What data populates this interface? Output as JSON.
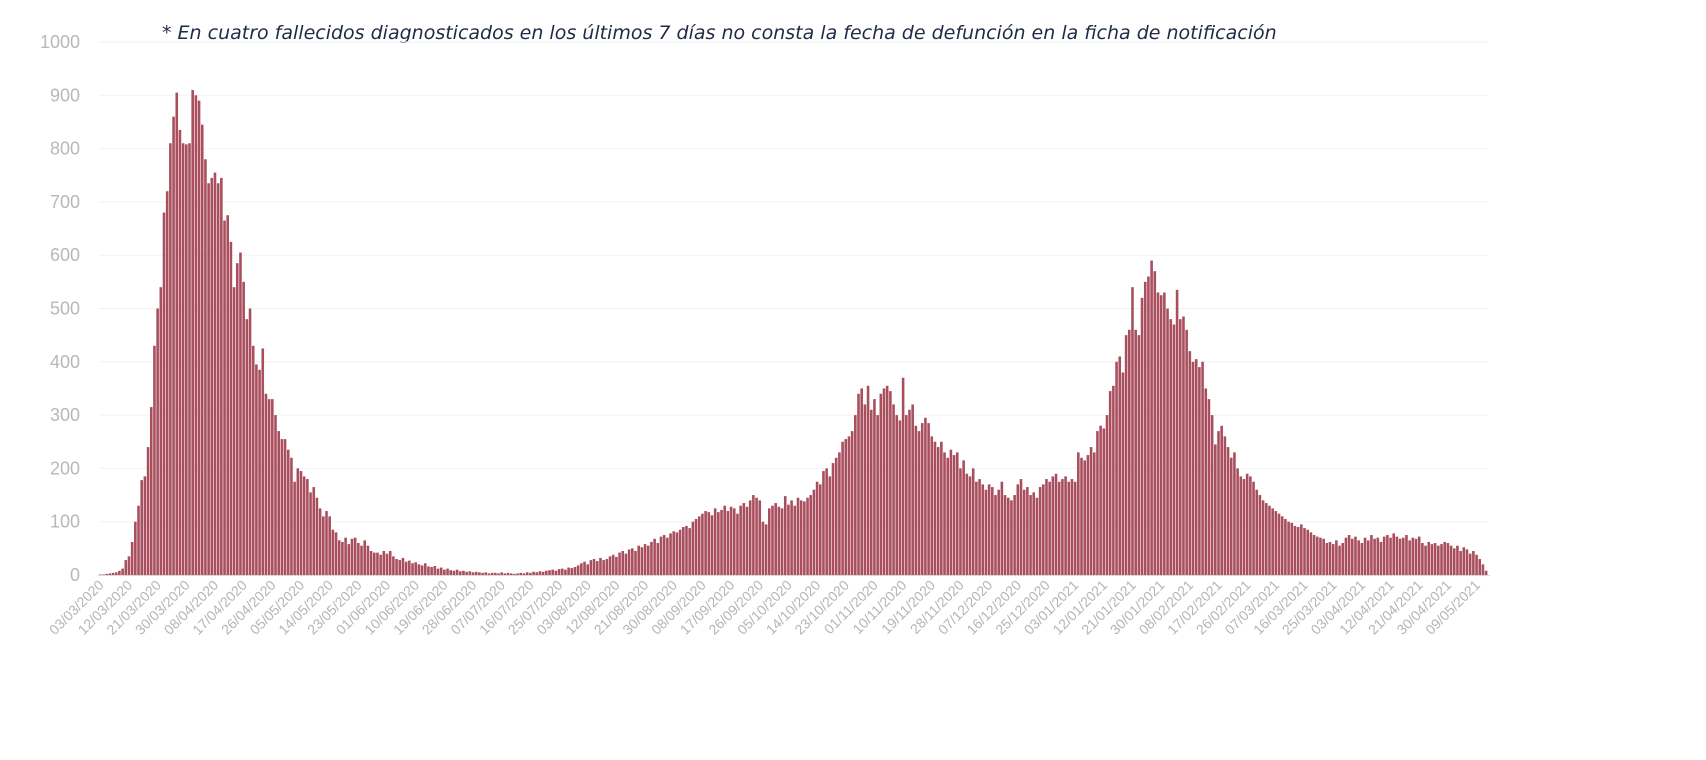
{
  "chart_data": {
    "type": "bar",
    "title": "",
    "annotation": "* En cuatro  fallecidos diagnosticados en los últimos 7 días no consta la fecha de defunción en la ficha de notificación",
    "xlabel": "",
    "ylabel": "",
    "ylim": [
      0,
      1000
    ],
    "yticks": [
      0,
      100,
      200,
      300,
      400,
      500,
      600,
      700,
      800,
      900,
      1000
    ],
    "grid": true,
    "bar_color": "#a94e5d",
    "x_start": "03/03/2020",
    "x_end": "13/05/2021",
    "x_tick_labels": [
      "03/03/2020",
      "12/03/2020",
      "21/03/2020",
      "30/03/2020",
      "08/04/2020",
      "17/04/2020",
      "26/04/2020",
      "05/05/2020",
      "14/05/2020",
      "23/05/2020",
      "01/06/2020",
      "10/06/2020",
      "19/06/2020",
      "28/06/2020",
      "07/07/2020",
      "16/07/2020",
      "25/07/2020",
      "03/08/2020",
      "12/08/2020",
      "21/08/2020",
      "30/08/2020",
      "08/09/2020",
      "17/09/2020",
      "26/09/2020",
      "05/10/2020",
      "14/10/2020",
      "23/10/2020",
      "01/11/2020",
      "10/11/2020",
      "19/11/2020",
      "28/11/2020",
      "07/12/2020",
      "16/12/2020",
      "25/12/2020",
      "03/01/2021",
      "12/01/2021",
      "21/01/2021",
      "30/01/2021",
      "08/02/2021",
      "17/02/2021",
      "26/02/2021",
      "07/03/2021",
      "16/03/2021",
      "25/03/2021",
      "03/04/2021",
      "12/04/2021",
      "21/04/2021",
      "30/04/2021",
      "09/05/2021"
    ],
    "values": [
      1,
      1,
      2,
      3,
      4,
      5,
      8,
      12,
      28,
      35,
      62,
      100,
      130,
      178,
      185,
      240,
      315,
      430,
      500,
      540,
      680,
      720,
      810,
      860,
      905,
      835,
      810,
      808,
      810,
      910,
      900,
      890,
      845,
      780,
      735,
      745,
      755,
      735,
      745,
      665,
      675,
      625,
      540,
      585,
      605,
      550,
      480,
      500,
      430,
      395,
      385,
      425,
      340,
      330,
      330,
      300,
      270,
      255,
      255,
      235,
      220,
      175,
      200,
      195,
      185,
      180,
      155,
      165,
      145,
      125,
      110,
      120,
      110,
      85,
      80,
      65,
      62,
      70,
      58,
      68,
      70,
      60,
      55,
      65,
      55,
      45,
      42,
      42,
      38,
      45,
      40,
      45,
      35,
      30,
      28,
      32,
      25,
      27,
      22,
      24,
      20,
      18,
      22,
      16,
      15,
      17,
      12,
      14,
      10,
      12,
      9,
      8,
      10,
      7,
      8,
      6,
      7,
      5,
      6,
      5,
      4,
      5,
      3,
      4,
      4,
      3,
      5,
      3,
      4,
      3,
      2,
      3,
      4,
      3,
      5,
      4,
      6,
      5,
      7,
      6,
      8,
      9,
      10,
      8,
      11,
      12,
      10,
      14,
      13,
      15,
      18,
      22,
      25,
      20,
      28,
      30,
      26,
      32,
      28,
      30,
      35,
      38,
      34,
      42,
      45,
      40,
      48,
      50,
      45,
      55,
      52,
      58,
      55,
      62,
      68,
      60,
      72,
      75,
      70,
      78,
      82,
      80,
      85,
      90,
      92,
      88,
      100,
      105,
      110,
      115,
      120,
      118,
      112,
      125,
      118,
      122,
      130,
      120,
      128,
      125,
      115,
      130,
      135,
      128,
      140,
      150,
      145,
      140,
      100,
      95,
      125,
      130,
      135,
      128,
      125,
      148,
      132,
      140,
      130,
      145,
      140,
      138,
      145,
      150,
      160,
      175,
      170,
      195,
      200,
      185,
      210,
      220,
      230,
      250,
      255,
      260,
      270,
      300,
      340,
      350,
      320,
      355,
      310,
      330,
      300,
      340,
      350,
      355,
      345,
      320,
      300,
      290,
      370,
      300,
      310,
      320,
      280,
      270,
      285,
      295,
      285,
      260,
      250,
      240,
      250,
      230,
      220,
      235,
      225,
      230,
      200,
      215,
      190,
      185,
      200,
      175,
      180,
      170,
      160,
      170,
      165,
      150,
      160,
      175,
      150,
      145,
      140,
      150,
      170,
      180,
      160,
      165,
      150,
      155,
      145,
      165,
      170,
      180,
      175,
      185,
      190,
      175,
      180,
      185,
      175,
      180,
      175,
      230,
      220,
      215,
      225,
      240,
      230,
      270,
      280,
      275,
      300,
      345,
      355,
      400,
      410,
      380,
      450,
      460,
      540,
      460,
      450,
      520,
      550,
      560,
      590,
      570,
      530,
      525,
      530,
      500,
      480,
      470,
      535,
      480,
      485,
      460,
      420,
      400,
      405,
      390,
      400,
      350,
      330,
      300,
      245,
      270,
      280,
      260,
      240,
      220,
      230,
      200,
      185,
      180,
      190,
      185,
      175,
      160,
      150,
      140,
      135,
      130,
      125,
      120,
      115,
      110,
      105,
      100,
      98,
      92,
      90,
      95,
      88,
      85,
      80,
      75,
      72,
      70,
      68,
      60,
      62,
      58,
      65,
      55,
      60,
      70,
      75,
      68,
      72,
      65,
      60,
      70,
      65,
      75,
      68,
      70,
      62,
      72,
      75,
      70,
      78,
      72,
      68,
      70,
      75,
      65,
      70,
      68,
      72,
      60,
      55,
      62,
      58,
      60,
      55,
      58,
      62,
      60,
      55,
      50,
      55,
      45,
      52,
      48,
      40,
      45,
      38,
      30,
      20,
      8
    ]
  }
}
